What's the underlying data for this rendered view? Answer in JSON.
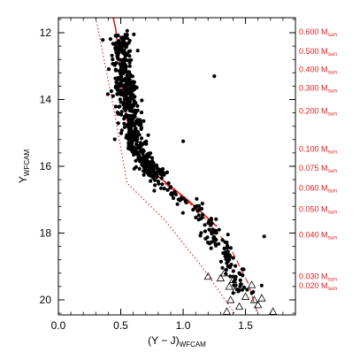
{
  "colors": {
    "points": "#000000",
    "model": "#e41a1c",
    "frame": "#000000",
    "triangles": "#000000"
  },
  "chart_data": {
    "type": "scatter",
    "title": "",
    "xlabel": {
      "main": "(Y − J)",
      "sub": "WFCAM"
    },
    "ylabel": {
      "main": "Y",
      "sub": "WFCAM"
    },
    "xlim": [
      0.0,
      1.9
    ],
    "ylim": [
      20.45,
      11.55
    ],
    "y_inverted": true,
    "grid": false,
    "x_ticks": [
      {
        "value": 0.0,
        "label": "0.0"
      },
      {
        "value": 0.5,
        "label": "0.5"
      },
      {
        "value": 1.0,
        "label": "1.0"
      },
      {
        "value": 1.5,
        "label": "1.5"
      }
    ],
    "y_ticks": [
      {
        "value": 12,
        "label": "12"
      },
      {
        "value": 14,
        "label": "14"
      },
      {
        "value": 16,
        "label": "16"
      },
      {
        "value": 18,
        "label": "18"
      },
      {
        "value": 20,
        "label": "20"
      }
    ],
    "mass_labels": [
      {
        "y": 11.98,
        "text": "0.600 M",
        "sub": "sun"
      },
      {
        "y": 12.55,
        "text": "0.500 M",
        "sub": "sun"
      },
      {
        "y": 13.1,
        "text": "0.400 M",
        "sub": "sun"
      },
      {
        "y": 13.65,
        "text": "0.300 M",
        "sub": "sun"
      },
      {
        "y": 14.35,
        "text": "0.200 M",
        "sub": "sun"
      },
      {
        "y": 15.48,
        "text": "0.100 M",
        "sub": "sun"
      },
      {
        "y": 16.05,
        "text": "0.075 M",
        "sub": "sun"
      },
      {
        "y": 16.65,
        "text": "0.060 M",
        "sub": "sun"
      },
      {
        "y": 17.28,
        "text": "0.050 M",
        "sub": "sun"
      },
      {
        "y": 18.05,
        "text": "0.040 M",
        "sub": "sun"
      },
      {
        "y": 19.3,
        "text": "0.030 M",
        "sub": "sun"
      },
      {
        "y": 19.58,
        "text": "0.020 M",
        "sub": "sun"
      }
    ],
    "series": [
      {
        "kind": "line",
        "style": "solid",
        "points": [
          [
            0.44,
            11.55
          ],
          [
            0.46,
            11.9
          ],
          [
            0.48,
            12.5
          ],
          [
            0.5,
            13.2
          ],
          [
            0.52,
            13.9
          ],
          [
            0.55,
            14.6
          ],
          [
            0.58,
            15.2
          ],
          [
            0.62,
            15.6
          ],
          [
            0.7,
            16.0
          ],
          [
            0.85,
            16.45
          ],
          [
            1.05,
            17.05
          ],
          [
            1.27,
            17.8
          ]
        ]
      },
      {
        "kind": "line",
        "style": "dashed",
        "points": [
          [
            0.85,
            16.5
          ],
          [
            1.05,
            17.1
          ],
          [
            1.25,
            17.85
          ],
          [
            1.4,
            18.6
          ],
          [
            1.52,
            19.5
          ],
          [
            1.6,
            20.45
          ]
        ]
      },
      {
        "kind": "line",
        "style": "dotted",
        "points": [
          [
            0.3,
            11.55
          ],
          [
            0.44,
            14.2
          ],
          [
            0.55,
            16.5
          ],
          [
            0.85,
            17.6
          ],
          [
            1.15,
            19.0
          ],
          [
            1.42,
            20.45
          ]
        ]
      },
      {
        "kind": "triangles",
        "points": [
          [
            1.2,
            19.3
          ],
          [
            1.3,
            19.35
          ],
          [
            1.33,
            19.2
          ],
          [
            1.37,
            19.6
          ],
          [
            1.4,
            19.4
          ],
          [
            1.42,
            19.7
          ],
          [
            1.38,
            20.0
          ],
          [
            1.45,
            20.2
          ],
          [
            1.5,
            19.9
          ],
          [
            1.55,
            19.55
          ],
          [
            1.57,
            20.0
          ],
          [
            1.6,
            20.15
          ],
          [
            1.63,
            19.95
          ],
          [
            1.72,
            20.35
          ],
          [
            1.35,
            20.35
          ]
        ]
      }
    ]
  }
}
